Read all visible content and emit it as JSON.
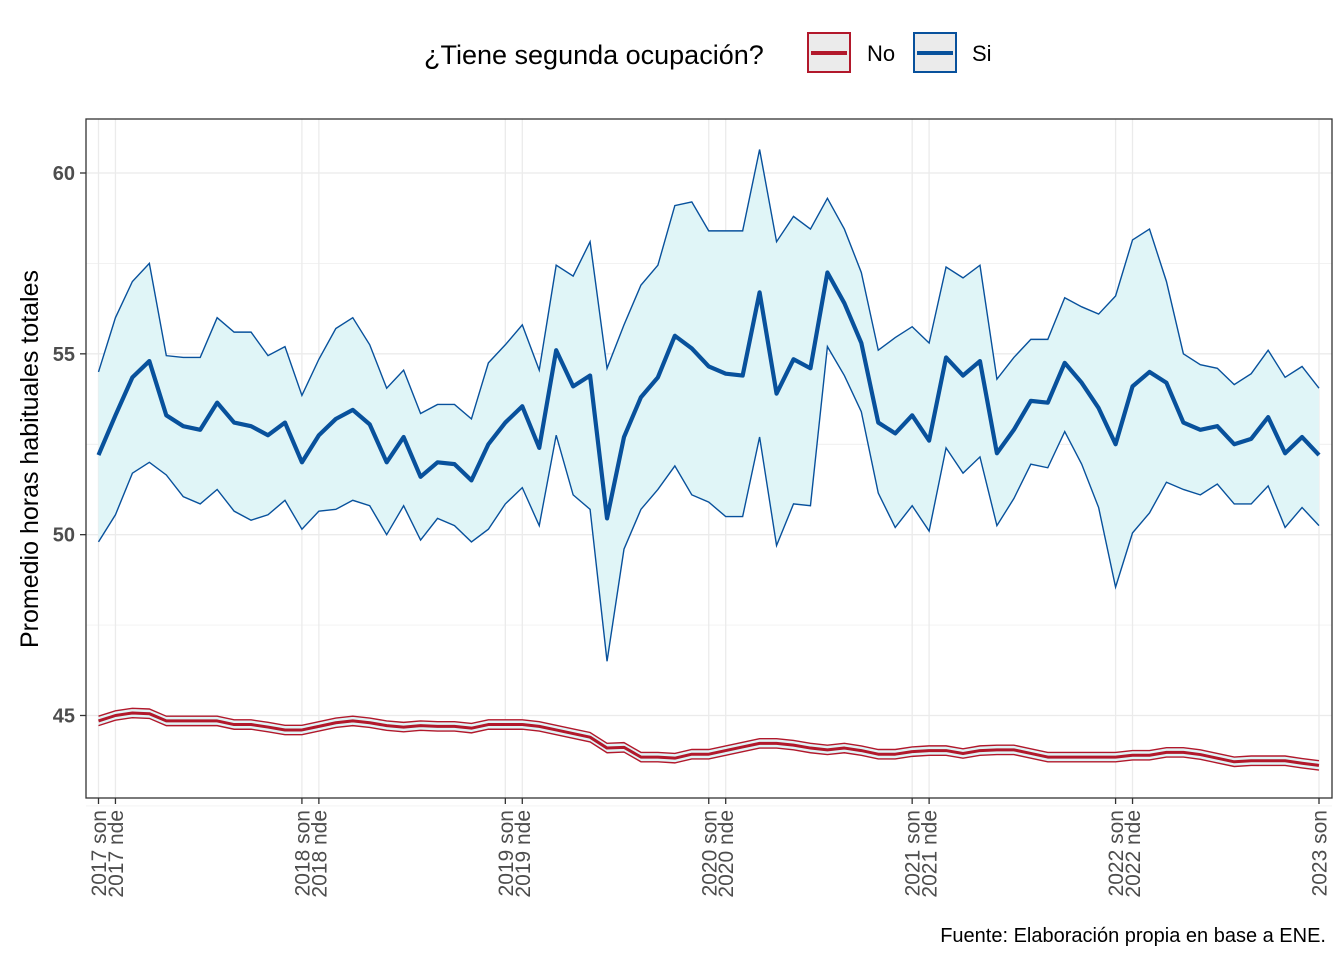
{
  "chart_data": {
    "type": "line",
    "legend": {
      "title": "¿Tiene segunda ocupación?",
      "position": "top",
      "items": [
        {
          "label": "No",
          "color": "#b2182b"
        },
        {
          "label": "Si",
          "color": "#08519c"
        }
      ]
    },
    "ylabel": "Promedio horas habituales totales",
    "xlabel": "",
    "caption": "Fuente: Elaboración propia en base a ENE.",
    "ylim": [
      42.2,
      61.5
    ],
    "y_ticks": [
      45,
      50,
      55,
      60
    ],
    "x_ticks": [
      {
        "index": 0,
        "label": "2017 son"
      },
      {
        "index": 1,
        "label": "2017 nde"
      },
      {
        "index": 12,
        "label": "2018 son"
      },
      {
        "index": 13,
        "label": "2018 nde"
      },
      {
        "index": 24,
        "label": "2019 son"
      },
      {
        "index": 25,
        "label": "2019 nde"
      },
      {
        "index": 36,
        "label": "2020 son"
      },
      {
        "index": 37,
        "label": "2020 nde"
      },
      {
        "index": 48,
        "label": "2021 son"
      },
      {
        "index": 49,
        "label": "2021 nde"
      },
      {
        "index": 60,
        "label": "2022 son"
      },
      {
        "index": 61,
        "label": "2022 nde"
      },
      {
        "index": 72,
        "label": "2023 son"
      }
    ],
    "grid": true,
    "ribbon_fill": "#e0f5f7",
    "series": [
      {
        "name": "Si",
        "color": "#08519c",
        "values": [
          52.2,
          53.3,
          54.35,
          54.8,
          53.3,
          53.0,
          52.9,
          53.65,
          53.1,
          53.0,
          52.75,
          53.1,
          52.0,
          52.75,
          53.2,
          53.45,
          53.05,
          52.0,
          52.7,
          51.6,
          52.0,
          51.95,
          51.5,
          52.5,
          53.1,
          53.55,
          52.4,
          55.1,
          54.1,
          54.4,
          50.45,
          52.7,
          53.8,
          54.35,
          55.5,
          55.15,
          54.65,
          54.45,
          54.4,
          56.7,
          53.9,
          54.85,
          54.6,
          57.25,
          56.4,
          55.3,
          53.1,
          52.8,
          53.3,
          52.6,
          54.9,
          54.4,
          54.8,
          52.25,
          52.9,
          53.7,
          53.65,
          54.75,
          54.2,
          53.5,
          52.5,
          54.1,
          54.5,
          54.2,
          53.1,
          52.9,
          53.0,
          52.5,
          52.65,
          53.25,
          52.25,
          52.7,
          52.2
        ],
        "upper": [
          54.5,
          56.0,
          57.0,
          57.5,
          54.95,
          54.9,
          54.9,
          56.0,
          55.6,
          55.6,
          54.95,
          55.2,
          53.85,
          54.85,
          55.7,
          56.0,
          55.25,
          54.05,
          54.55,
          53.35,
          53.6,
          53.6,
          53.2,
          54.75,
          55.25,
          55.8,
          54.55,
          57.45,
          57.15,
          58.1,
          54.6,
          55.8,
          56.9,
          57.45,
          59.1,
          59.2,
          58.4,
          58.4,
          58.4,
          60.65,
          58.1,
          58.8,
          58.45,
          59.3,
          58.45,
          57.25,
          55.1,
          55.45,
          55.75,
          55.3,
          57.4,
          57.1,
          57.45,
          54.3,
          54.9,
          55.4,
          55.4,
          56.55,
          56.3,
          56.1,
          56.6,
          58.15,
          58.45,
          57.0,
          55.0,
          54.7,
          54.6,
          54.15,
          54.45,
          55.1,
          54.35,
          54.65,
          54.05
        ],
        "lower": [
          49.8,
          50.55,
          51.7,
          52.0,
          51.65,
          51.05,
          50.85,
          51.25,
          50.65,
          50.4,
          50.55,
          50.95,
          50.15,
          50.65,
          50.7,
          50.95,
          50.8,
          50.0,
          50.8,
          49.85,
          50.45,
          50.25,
          49.8,
          50.15,
          50.85,
          51.3,
          50.25,
          52.75,
          51.1,
          50.7,
          46.5,
          49.6,
          50.7,
          51.25,
          51.9,
          51.1,
          50.9,
          50.5,
          50.5,
          52.7,
          49.7,
          50.85,
          50.8,
          55.2,
          54.4,
          53.4,
          51.15,
          50.2,
          50.8,
          50.1,
          52.4,
          51.7,
          52.15,
          50.25,
          51.0,
          51.95,
          51.85,
          52.85,
          51.95,
          50.75,
          48.55,
          50.05,
          50.6,
          51.45,
          51.25,
          51.1,
          51.4,
          50.85,
          50.85,
          51.35,
          50.2,
          50.75,
          50.25
        ]
      },
      {
        "name": "No",
        "color": "#b2182b",
        "values": [
          44.85,
          45.0,
          45.07,
          45.05,
          44.85,
          44.85,
          44.85,
          44.85,
          44.75,
          44.75,
          44.68,
          44.6,
          44.6,
          44.7,
          44.8,
          44.85,
          44.8,
          44.72,
          44.68,
          44.72,
          44.7,
          44.7,
          44.65,
          44.75,
          44.75,
          44.75,
          44.7,
          44.6,
          44.5,
          44.4,
          44.1,
          44.12,
          43.85,
          43.85,
          43.82,
          43.93,
          43.93,
          44.03,
          44.13,
          44.23,
          44.23,
          44.18,
          44.1,
          44.05,
          44.1,
          44.03,
          43.93,
          43.93,
          44.0,
          44.03,
          44.03,
          43.95,
          44.03,
          44.05,
          44.05,
          43.95,
          43.85,
          43.85,
          43.85,
          43.85,
          43.85,
          43.9,
          43.9,
          43.98,
          43.98,
          43.92,
          43.82,
          43.72,
          43.75,
          43.75,
          43.75,
          43.68,
          43.62
        ],
        "upper": [
          44.98,
          45.13,
          45.2,
          45.18,
          44.98,
          44.98,
          44.98,
          44.98,
          44.88,
          44.88,
          44.81,
          44.73,
          44.73,
          44.83,
          44.93,
          44.98,
          44.93,
          44.85,
          44.81,
          44.85,
          44.83,
          44.83,
          44.78,
          44.88,
          44.88,
          44.88,
          44.83,
          44.73,
          44.63,
          44.53,
          44.23,
          44.25,
          43.98,
          43.98,
          43.95,
          44.06,
          44.06,
          44.16,
          44.26,
          44.36,
          44.36,
          44.31,
          44.23,
          44.18,
          44.23,
          44.16,
          44.06,
          44.06,
          44.13,
          44.16,
          44.16,
          44.08,
          44.16,
          44.18,
          44.18,
          44.08,
          43.98,
          43.98,
          43.98,
          43.98,
          43.98,
          44.03,
          44.03,
          44.11,
          44.11,
          44.05,
          43.95,
          43.85,
          43.88,
          43.88,
          43.88,
          43.81,
          43.75
        ],
        "lower": [
          44.72,
          44.87,
          44.94,
          44.92,
          44.72,
          44.72,
          44.72,
          44.72,
          44.62,
          44.62,
          44.55,
          44.47,
          44.47,
          44.57,
          44.67,
          44.72,
          44.67,
          44.59,
          44.55,
          44.59,
          44.57,
          44.57,
          44.52,
          44.62,
          44.62,
          44.62,
          44.57,
          44.47,
          44.37,
          44.27,
          43.97,
          43.99,
          43.72,
          43.72,
          43.69,
          43.8,
          43.8,
          43.9,
          44.0,
          44.1,
          44.1,
          44.05,
          43.97,
          43.92,
          43.97,
          43.9,
          43.8,
          43.8,
          43.87,
          43.9,
          43.9,
          43.82,
          43.9,
          43.92,
          43.92,
          43.82,
          43.72,
          43.72,
          43.72,
          43.72,
          43.72,
          43.77,
          43.77,
          43.85,
          43.85,
          43.79,
          43.69,
          43.59,
          43.62,
          43.62,
          43.62,
          43.55,
          43.49
        ]
      }
    ]
  }
}
